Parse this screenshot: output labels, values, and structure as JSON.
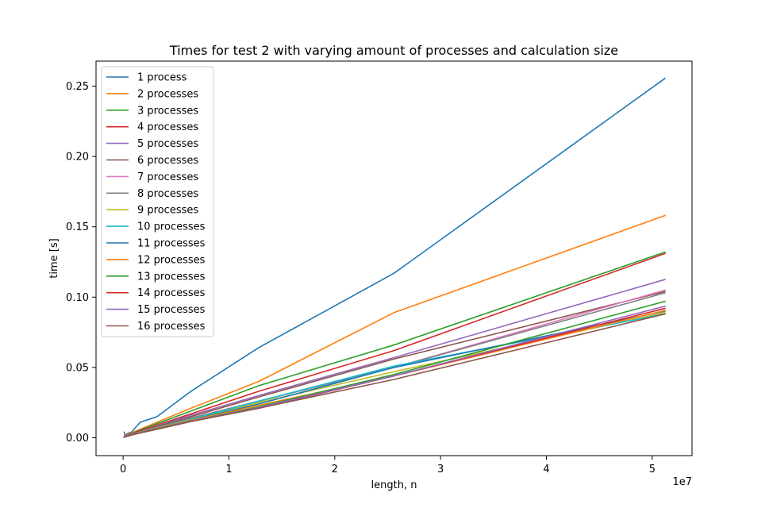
{
  "chart_data": {
    "type": "line",
    "title": "Times for test 2 with varying amount of processes and calculation size",
    "xlabel": "length, n",
    "ylabel": "time [s]",
    "x_offset_label": "1e7",
    "xlim": [
      -0.256,
      5.376
    ],
    "ylim": [
      -0.0127,
      0.2678
    ],
    "x_ticks": [
      0,
      1,
      2,
      3,
      4,
      5
    ],
    "x_tick_labels": [
      "0",
      "1",
      "2",
      "3",
      "4",
      "5"
    ],
    "y_ticks": [
      0.0,
      0.05,
      0.1,
      0.15,
      0.2,
      0.25
    ],
    "y_tick_labels": [
      "0.00",
      "0.05",
      "0.10",
      "0.15",
      "0.20",
      "0.25"
    ],
    "grid": false,
    "legend_position": "upper left",
    "x": [
      0.01,
      0.02,
      0.04,
      0.08,
      0.16,
      0.32,
      0.64,
      1.28,
      2.56,
      5.12
    ],
    "series": [
      {
        "name": "1 process",
        "color": "#1f77b4",
        "values": [
          0.001,
          0.0015,
          0.003,
          0.004,
          0.011,
          0.015,
          0.033,
          0.064,
          0.117,
          0.2555
        ]
      },
      {
        "name": "2 processes",
        "color": "#ff7f0e",
        "values": [
          0.0008,
          0.0012,
          0.0018,
          0.0035,
          0.006,
          0.011,
          0.021,
          0.04,
          0.089,
          0.158
        ]
      },
      {
        "name": "3 processes",
        "color": "#2ca02c",
        "values": [
          0.0007,
          0.001,
          0.0016,
          0.003,
          0.0055,
          0.01,
          0.019,
          0.037,
          0.066,
          0.132
        ]
      },
      {
        "name": "4 processes",
        "color": "#d62728",
        "values": [
          0.0006,
          0.0009,
          0.0015,
          0.0028,
          0.005,
          0.009,
          0.017,
          0.033,
          0.062,
          0.131
        ]
      },
      {
        "name": "5 processes",
        "color": "#9467bd",
        "values": [
          0.0006,
          0.0009,
          0.0014,
          0.0026,
          0.0045,
          0.0085,
          0.016,
          0.03,
          0.057,
          0.1125
        ]
      },
      {
        "name": "6 processes",
        "color": "#8c564b",
        "values": [
          0.004,
          0.0009,
          0.0014,
          0.0025,
          0.0045,
          0.008,
          0.015,
          0.029,
          0.056,
          0.104
        ]
      },
      {
        "name": "7 processes",
        "color": "#e377c2",
        "values": [
          0.0006,
          0.0009,
          0.0013,
          0.0024,
          0.004,
          0.0075,
          0.014,
          0.026,
          0.05,
          0.105
        ]
      },
      {
        "name": "8 processes",
        "color": "#7f7f7f",
        "values": [
          0.0006,
          0.0008,
          0.0013,
          0.0024,
          0.004,
          0.0075,
          0.014,
          0.026,
          0.05,
          0.103
        ]
      },
      {
        "name": "9 processes",
        "color": "#bcbd22",
        "values": [
          0.0005,
          0.0008,
          0.0012,
          0.0022,
          0.0038,
          0.007,
          0.013,
          0.025,
          0.047,
          0.089
        ]
      },
      {
        "name": "10 processes",
        "color": "#17becf",
        "values": [
          0.0005,
          0.0008,
          0.0012,
          0.0022,
          0.004,
          0.007,
          0.013,
          0.026,
          0.051,
          0.088
        ]
      },
      {
        "name": "11 processes",
        "color": "#1f77b4",
        "values": [
          0.0005,
          0.0008,
          0.0012,
          0.0022,
          0.0038,
          0.0068,
          0.0125,
          0.024,
          0.05,
          0.09
        ]
      },
      {
        "name": "12 processes",
        "color": "#ff7f0e",
        "values": [
          0.0005,
          0.0008,
          0.0012,
          0.0022,
          0.0038,
          0.0068,
          0.0125,
          0.023,
          0.044,
          0.0905
        ]
      },
      {
        "name": "13 processes",
        "color": "#2ca02c",
        "values": [
          0.0005,
          0.0008,
          0.0012,
          0.0021,
          0.0036,
          0.0065,
          0.012,
          0.022,
          0.045,
          0.097
        ]
      },
      {
        "name": "14 processes",
        "color": "#d62728",
        "values": [
          0.0005,
          0.0007,
          0.0011,
          0.002,
          0.0035,
          0.0062,
          0.0118,
          0.021,
          0.044,
          0.092
        ]
      },
      {
        "name": "15 processes",
        "color": "#9467bd",
        "values": [
          0.0005,
          0.0007,
          0.0011,
          0.002,
          0.0035,
          0.0062,
          0.0118,
          0.0215,
          0.044,
          0.0935
        ]
      },
      {
        "name": "16 processes",
        "color": "#8c564b",
        "values": [
          0.0005,
          0.0007,
          0.0011,
          0.002,
          0.0034,
          0.006,
          0.0115,
          0.021,
          0.0415,
          0.088
        ]
      }
    ]
  }
}
